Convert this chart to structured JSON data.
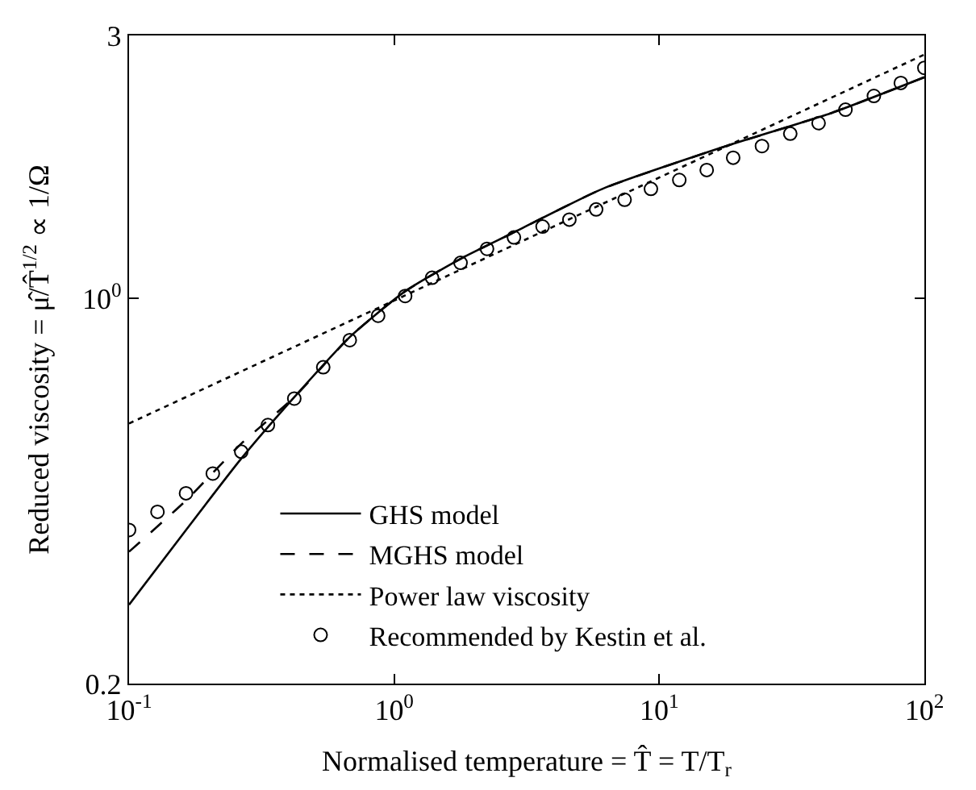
{
  "chart_data": {
    "type": "line",
    "xlabel": "Normalised temperature = T̂ = T/T$_{r}$",
    "ylabel": "Reduced viscosity = μ̂/T̂$^{1/2}$ ∝ 1/Ω",
    "log": "xy",
    "legend": "bottom",
    "xlim": [
      0.1,
      100
    ],
    "ylim": [
      0.2,
      3
    ],
    "xticks": [
      {
        "value": 0.1,
        "label": "10$^{-1}$"
      },
      {
        "value": 1,
        "label": "10$^{0}$"
      },
      {
        "value": 10,
        "label": "10$^{1}$"
      },
      {
        "value": 100,
        "label": "10$^{2}$"
      }
    ],
    "yticks": [
      0.2,
      {
        "value": 1,
        "label": "10$^{0}$"
      },
      3
    ],
    "series": [
      {
        "name": "GHS model",
        "line_style": "solid",
        "marker": "none",
        "color": "#000000",
        "x": [
          0.1,
          0.164,
          0.265,
          0.42,
          0.68,
          1.1,
          1.78,
          2.76,
          6.1,
          17.3,
          44.6,
          100
        ],
        "values": [
          0.278,
          0.38,
          0.512,
          0.662,
          0.851,
          1.03,
          1.18,
          1.31,
          1.58,
          1.88,
          2.17,
          2.52
        ]
      },
      {
        "name": "MGHS model",
        "line_style": "dashed",
        "marker": "none",
        "color": "#000000",
        "x": [
          0.1,
          0.164,
          0.265,
          0.42,
          0.68,
          1.1,
          1.78,
          2.76,
          6.1,
          17.3,
          44.6,
          100
        ],
        "values": [
          0.347,
          0.43,
          0.545,
          0.662,
          0.851,
          1.03,
          1.18,
          1.31,
          1.58,
          1.88,
          2.17,
          2.52
        ]
      },
      {
        "name": "Power law viscosity",
        "line_style": "dotted",
        "marker": "none",
        "color": "#000000",
        "x": [
          0.1,
          100
        ],
        "values": [
          0.593,
          2.77
        ]
      },
      {
        "name": "Recommended by Kestin et al.",
        "type": "scatter",
        "marker": "circle",
        "color": "#000000",
        "x": [
          0.1,
          0.128,
          0.164,
          0.207,
          0.265,
          0.334,
          0.42,
          0.54,
          0.68,
          0.87,
          1.1,
          1.39,
          1.78,
          2.24,
          2.83,
          3.63,
          4.58,
          5.78,
          7.4,
          9.3,
          11.9,
          15.1,
          19.0,
          24.4,
          31.2,
          39.9,
          50.4,
          64.5,
          81.5,
          100
        ],
        "values": [
          0.38,
          0.41,
          0.443,
          0.481,
          0.527,
          0.589,
          0.658,
          0.75,
          0.84,
          0.93,
          1.01,
          1.09,
          1.16,
          1.23,
          1.29,
          1.35,
          1.39,
          1.45,
          1.51,
          1.58,
          1.64,
          1.71,
          1.8,
          1.89,
          1.99,
          2.08,
          2.2,
          2.33,
          2.46,
          2.62
        ]
      }
    ]
  }
}
